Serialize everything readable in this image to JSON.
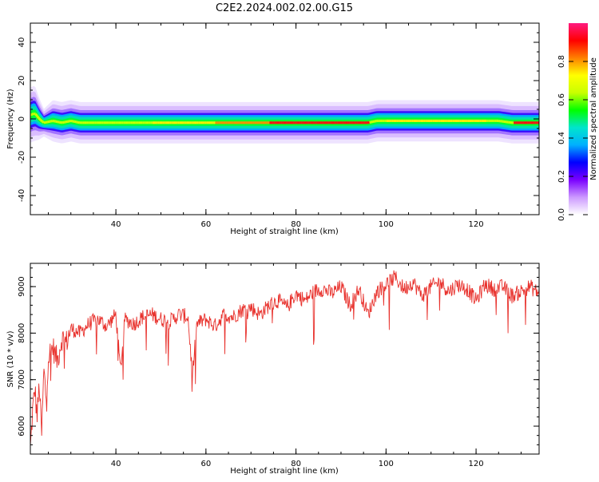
{
  "figure": {
    "title": "C2E2.2024.002.02.00.G15"
  },
  "chart_data": [
    {
      "type": "heatmap",
      "title": "",
      "xlabel": "Height of straight line (km)",
      "ylabel": "Frequency (Hz)",
      "xlim": [
        21,
        134
      ],
      "ylim": [
        -50,
        50
      ],
      "x_ticks": [
        40,
        60,
        80,
        100,
        120
      ],
      "y_ticks": [
        -40,
        -20,
        0,
        20,
        40
      ],
      "ridge": {
        "x": [
          21,
          22,
          23,
          24,
          26,
          28,
          30,
          32,
          35,
          40,
          50,
          60,
          70,
          80,
          90,
          96,
          98,
          100,
          105,
          110,
          120,
          125,
          128,
          130,
          134
        ],
        "freq": [
          2,
          3,
          0,
          -2,
          -1,
          -2,
          -1,
          -2,
          -2,
          -2,
          -2,
          -2,
          -2,
          -2,
          -2,
          -2,
          -1,
          -1,
          -1,
          -1,
          -1,
          -1,
          -2,
          -2,
          -2
        ],
        "halfwidth": [
          4,
          4,
          3,
          2,
          3,
          3,
          3,
          3,
          3,
          3,
          3,
          3,
          3,
          3,
          3,
          3,
          3,
          3,
          3,
          3,
          3,
          3,
          3,
          3,
          3
        ]
      },
      "colorbar": {
        "label": "Normalized spectral amplitude",
        "range": [
          0,
          1
        ],
        "ticks": [
          "0.0",
          "0.2",
          "0.4",
          "0.6",
          "0.8"
        ],
        "colors": [
          "#ffffff",
          "#cc99ff",
          "#7a00ff",
          "#0000ff",
          "#00b0ff",
          "#00e5cc",
          "#00ff00",
          "#c8ff00",
          "#ffff00",
          "#ff8000",
          "#ff0000",
          "#ff1a80"
        ]
      }
    },
    {
      "type": "line",
      "title": "",
      "xlabel": "Height of straight line (km)",
      "ylabel": "SNR (10 * v/v)",
      "xlim": [
        21,
        134
      ],
      "ylim": [
        5400,
        9500
      ],
      "x_ticks": [
        40,
        60,
        80,
        100,
        120
      ],
      "y_ticks": [
        6000,
        7000,
        8000,
        9000
      ],
      "color": "#e8312c",
      "series": [
        {
          "x": [
            21,
            21.5,
            22,
            22.5,
            23,
            23.5,
            24,
            24.5,
            25,
            26,
            27,
            28,
            29,
            30,
            32,
            34,
            36,
            38,
            40,
            41,
            42,
            44,
            46,
            48,
            50,
            52,
            54,
            56,
            57,
            58,
            60,
            62,
            64,
            66,
            68,
            70,
            72,
            74,
            76,
            78,
            80,
            82,
            84,
            86,
            88,
            90,
            92,
            94,
            96,
            98,
            100,
            102,
            104,
            106,
            108,
            110,
            112,
            114,
            116,
            118,
            120,
            122,
            124,
            126,
            128,
            130,
            132,
            134
          ],
          "values": [
            5500,
            6300,
            6800,
            6200,
            6900,
            5800,
            7200,
            6600,
            7500,
            7700,
            7400,
            7900,
            7800,
            8100,
            8000,
            8200,
            8300,
            8150,
            8400,
            7200,
            8300,
            8200,
            8350,
            8400,
            8300,
            8250,
            8400,
            8350,
            7100,
            8200,
            8300,
            8150,
            8400,
            8350,
            8500,
            8550,
            8400,
            8600,
            8700,
            8550,
            8850,
            8700,
            8900,
            8950,
            8850,
            9000,
            8600,
            8950,
            8400,
            8900,
            9050,
            9200,
            8950,
            9100,
            8800,
            9000,
            9100,
            8900,
            9050,
            8950,
            8700,
            9050,
            8950,
            9000,
            8800,
            8900,
            9000,
            8850
          ]
        }
      ]
    }
  ]
}
